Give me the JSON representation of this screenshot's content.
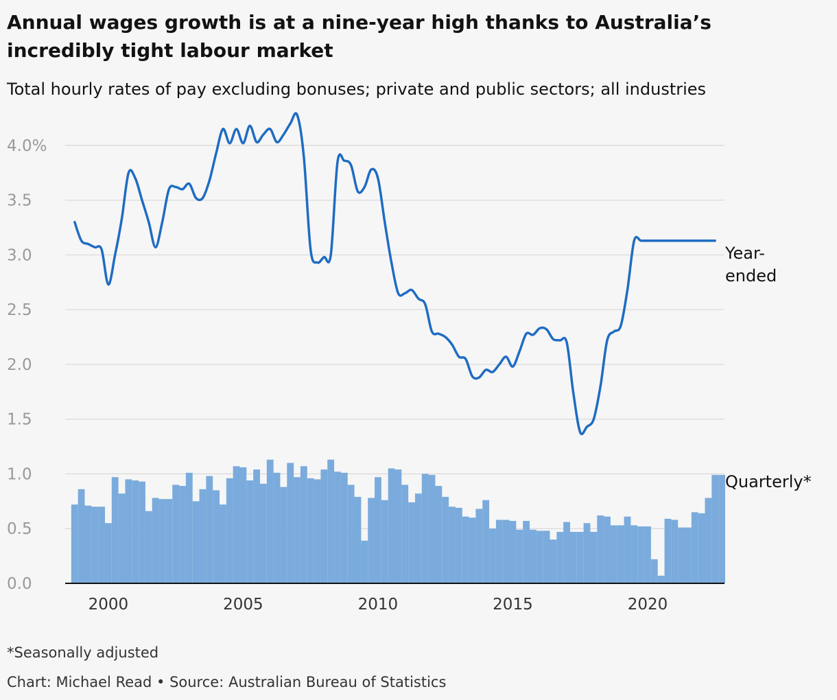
{
  "title": "Annual wages growth is at a nine-year high thanks to Australia’s incredibly tight labour market",
  "subtitle": "Total hourly rates of pay excluding bonuses; private and public sectors; all industries",
  "note": "*Seasonally adjusted",
  "source": "Chart: Michael Read • Source: Australian Bureau of Statistics",
  "chart_data": {
    "type": "bar",
    "ylim": [
      0,
      4.2
    ],
    "yticks": [
      0,
      0.5,
      1.0,
      1.5,
      2.0,
      2.5,
      3.0,
      3.5,
      4.0
    ],
    "ytick_labels": [
      "0.0",
      "0.5",
      "1.0",
      "1.5",
      "2.0",
      "2.5",
      "3.0",
      "3.5",
      "4.0%"
    ],
    "xlim": [
      1998.4,
      2022.85
    ],
    "xticks": [
      2000,
      2005,
      2010,
      2015,
      2020
    ],
    "xtick_labels": [
      "2000",
      "2005",
      "2010",
      "2015",
      "2020"
    ],
    "grid": true,
    "colors": {
      "line": "#1f6cc2",
      "bars": "#7aabdc",
      "grid": "#d8d8d8",
      "axis": "#121212"
    },
    "series": [
      {
        "name": "Year-ended",
        "type": "line",
        "x": [
          1998.75,
          1999.0,
          1999.25,
          1999.5,
          1999.75,
          2000.0,
          2000.25,
          2000.5,
          2000.75,
          2001.0,
          2001.25,
          2001.5,
          2001.75,
          2002.0,
          2002.25,
          2002.5,
          2002.75,
          2003.0,
          2003.25,
          2003.5,
          2003.75,
          2004.0,
          2004.25,
          2004.5,
          2004.75,
          2005.0,
          2005.25,
          2005.5,
          2005.75,
          2006.0,
          2006.25,
          2006.5,
          2006.75,
          2007.0,
          2007.25,
          2007.5,
          2007.75,
          2008.0,
          2008.25,
          2008.5,
          2008.75,
          2009.0,
          2009.25,
          2009.5,
          2009.75,
          2010.0,
          2010.25,
          2010.5,
          2010.75,
          2011.0,
          2011.25,
          2011.5,
          2011.75,
          2012.0,
          2012.25,
          2012.5,
          2012.75,
          2013.0,
          2013.25,
          2013.5,
          2013.75,
          2014.0,
          2014.25,
          2014.5,
          2014.75,
          2015.0,
          2015.25,
          2015.5,
          2015.75,
          2016.0,
          2016.25,
          2016.5,
          2016.75,
          2017.0,
          2017.25,
          2017.5,
          2017.75,
          2018.0,
          2018.25,
          2018.5,
          2018.75,
          2019.0,
          2019.25,
          2019.5,
          2019.75,
          2020.0,
          2020.25,
          2020.5,
          2020.75,
          2021.0,
          2021.25,
          2021.5,
          2021.75,
          2022.0,
          2022.25,
          2022.5,
          2022.75
        ],
        "values": [
          3.3,
          3.13,
          3.1,
          3.07,
          3.05,
          2.73,
          3.0,
          3.33,
          3.75,
          3.7,
          3.5,
          3.3,
          3.07,
          3.3,
          3.6,
          3.62,
          3.6,
          3.65,
          3.52,
          3.52,
          3.68,
          3.93,
          4.15,
          4.02,
          4.15,
          4.02,
          4.18,
          4.03,
          4.1,
          4.15,
          4.03,
          4.1,
          4.2,
          4.28,
          3.9,
          3.05,
          2.93,
          2.98,
          3.0,
          3.85,
          3.86,
          3.82,
          3.58,
          3.62,
          3.78,
          3.7,
          3.3,
          2.93,
          2.65,
          2.65,
          2.68,
          2.6,
          2.55,
          2.3,
          2.28,
          2.25,
          2.18,
          2.07,
          2.05,
          1.89,
          1.88,
          1.95,
          1.93,
          2.0,
          2.07,
          1.98,
          2.12,
          2.28,
          2.27,
          2.33,
          2.32,
          2.23,
          2.22,
          2.2,
          1.73,
          1.38,
          1.43,
          1.5,
          1.8,
          2.22,
          2.3,
          2.35,
          2.68,
          3.13,
          3.13,
          3.13,
          3.13,
          3.13,
          3.13,
          3.13,
          3.13,
          3.13,
          3.13,
          3.13,
          3.13,
          3.13,
          3.13
        ]
      },
      {
        "name": "Quarterly*",
        "type": "bar",
        "x": [
          1998.75,
          1999.0,
          1999.25,
          1999.5,
          1999.75,
          2000.0,
          2000.25,
          2000.5,
          2000.75,
          2001.0,
          2001.25,
          2001.5,
          2001.75,
          2002.0,
          2002.25,
          2002.5,
          2002.75,
          2003.0,
          2003.25,
          2003.5,
          2003.75,
          2004.0,
          2004.25,
          2004.5,
          2004.75,
          2005.0,
          2005.25,
          2005.5,
          2005.75,
          2006.0,
          2006.25,
          2006.5,
          2006.75,
          2007.0,
          2007.25,
          2007.5,
          2007.75,
          2008.0,
          2008.25,
          2008.5,
          2008.75,
          2009.0,
          2009.25,
          2009.5,
          2009.75,
          2010.0,
          2010.25,
          2010.5,
          2010.75,
          2011.0,
          2011.25,
          2011.5,
          2011.75,
          2012.0,
          2012.25,
          2012.5,
          2012.75,
          2013.0,
          2013.25,
          2013.5,
          2013.75,
          2014.0,
          2014.25,
          2014.5,
          2014.75,
          2015.0,
          2015.25,
          2015.5,
          2015.75,
          2016.0,
          2016.25,
          2016.5,
          2016.75,
          2017.0,
          2017.25,
          2017.5,
          2017.75,
          2018.0,
          2018.25,
          2018.5,
          2018.75,
          2019.0,
          2019.25,
          2019.5,
          2019.75,
          2020.0,
          2020.25,
          2020.5,
          2020.75,
          2021.0,
          2021.25,
          2021.5,
          2021.75,
          2022.0,
          2022.25,
          2022.5,
          2022.75
        ],
        "values": [
          0.72,
          0.86,
          0.71,
          0.7,
          0.7,
          0.55,
          0.97,
          0.82,
          0.95,
          0.94,
          0.93,
          0.66,
          0.78,
          0.77,
          0.77,
          0.9,
          0.89,
          1.01,
          0.75,
          0.86,
          0.98,
          0.85,
          0.72,
          0.96,
          1.07,
          1.06,
          0.94,
          1.04,
          0.91,
          1.13,
          1.01,
          0.88,
          1.1,
          0.97,
          1.07,
          0.96,
          0.95,
          1.04,
          1.13,
          1.02,
          1.01,
          0.9,
          0.79,
          0.39,
          0.78,
          0.97,
          0.76,
          1.05,
          1.04,
          0.9,
          0.74,
          0.82,
          1.0,
          0.99,
          0.89,
          0.79,
          0.7,
          0.69,
          0.61,
          0.6,
          0.68,
          0.76,
          0.5,
          0.58,
          0.58,
          0.57,
          0.49,
          0.57,
          0.49,
          0.48,
          0.48,
          0.4,
          0.47,
          0.56,
          0.47,
          0.47,
          0.55,
          0.47,
          0.62,
          0.61,
          0.53,
          0.53,
          0.61,
          0.53,
          0.52,
          0.52,
          0.22,
          0.07,
          0.59,
          0.58,
          0.51,
          0.51,
          0.65,
          0.64,
          0.78,
          0.99,
          0.99
        ]
      }
    ]
  }
}
